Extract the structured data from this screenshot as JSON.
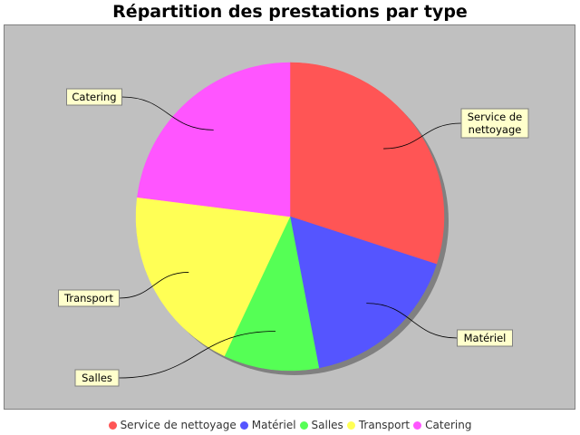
{
  "chart_data": {
    "type": "pie",
    "title": "Répartition des prestations par type",
    "slices": [
      {
        "label": "Service de nettoyage",
        "label_lines": [
          "Service de",
          "nettoyage"
        ],
        "value": 30,
        "color": "#ff5555"
      },
      {
        "label": "Matériel",
        "label_lines": [
          "Matériel"
        ],
        "value": 17,
        "color": "#5555ff"
      },
      {
        "label": "Salles",
        "label_lines": [
          "Salles"
        ],
        "value": 10,
        "color": "#55ff55"
      },
      {
        "label": "Transport",
        "label_lines": [
          "Transport"
        ],
        "value": 20,
        "color": "#ffff55"
      },
      {
        "label": "Catering",
        "label_lines": [
          "Catering"
        ],
        "value": 23,
        "color": "#ff55ff"
      }
    ],
    "legend_position": "bottom"
  },
  "colors": {
    "plot_background": "#c0c0c0",
    "label_background": "#ffffcc"
  }
}
